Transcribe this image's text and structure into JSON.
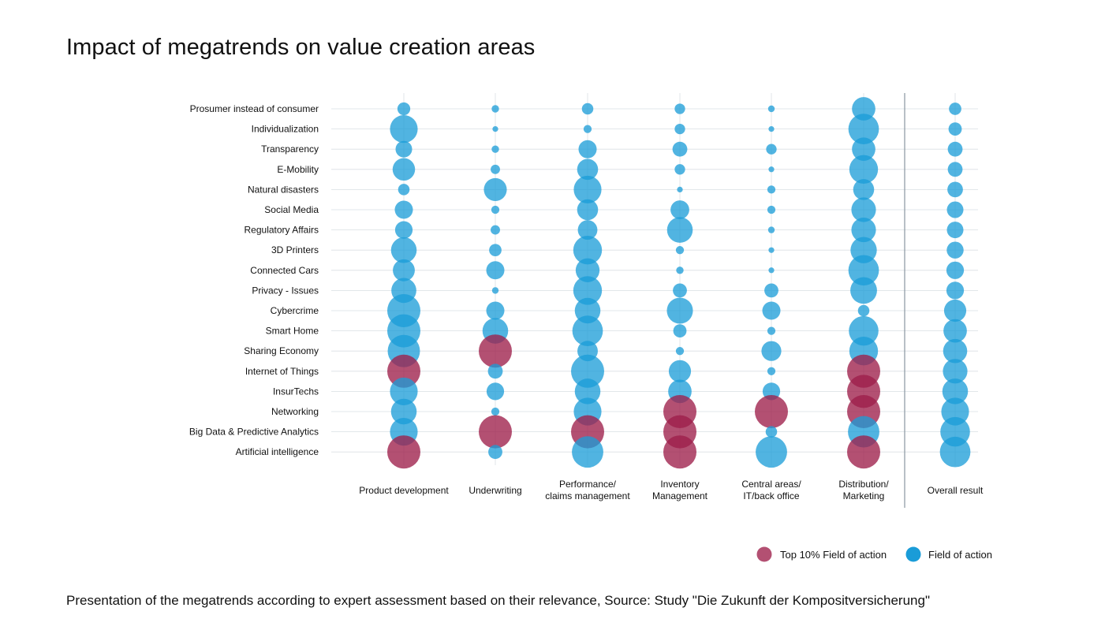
{
  "title": "Impact of megatrends on value creation areas",
  "caption": "Presentation of the megatrends according to expert assessment based on their relevance, Source: Study \"Die Zukunft der Kompositversicherung\"",
  "colors": {
    "field": "#1a9cd8",
    "top10": "#9e1f4a",
    "grid": "#d9dfe4",
    "divider": "#8a96a0"
  },
  "chart_data": {
    "type": "bubble-matrix",
    "rows": [
      "Prosumer instead of consumer",
      "Individualization",
      "Transparency",
      "E-Mobility",
      "Natural disasters",
      "Social Media",
      "Regulatory Affairs",
      "3D Printers",
      "Connected Cars",
      "Privacy - Issues",
      "Cybercrime",
      "Smart Home",
      "Sharing Economy",
      "Internet of Things",
      "InsurTechs",
      "Networking",
      "Big Data & Predictive Analytics",
      "Artificial intelligence"
    ],
    "columns": [
      {
        "label": [
          "Product development"
        ]
      },
      {
        "label": [
          "Underwriting"
        ]
      },
      {
        "label": [
          "Performance/",
          "claims management"
        ]
      },
      {
        "label": [
          "Inventory",
          "Management"
        ]
      },
      {
        "label": [
          "Central areas/",
          "IT/back office"
        ]
      },
      {
        "label": [
          "Distribution/",
          "Marketing"
        ]
      },
      {
        "label": [
          "Overall result"
        ]
      }
    ],
    "relevance_scale": "relative bubble size 0-10",
    "values": [
      [
        1.5,
        0.5,
        1.2,
        1.0,
        0.4,
        5.0,
        1.4
      ],
      [
        7.0,
        0.3,
        0.6,
        1.0,
        0.3,
        8.5,
        1.6
      ],
      [
        2.5,
        0.5,
        3.0,
        2.0,
        1.0,
        5.0,
        2.0
      ],
      [
        4.6,
        0.8,
        4.0,
        1.0,
        0.3,
        7.5,
        2.0
      ],
      [
        1.2,
        4.8,
        7.0,
        0.3,
        0.6,
        4.0,
        2.2
      ],
      [
        3.0,
        0.6,
        4.0,
        3.2,
        0.6,
        5.5,
        2.5
      ],
      [
        2.8,
        0.8,
        3.5,
        6.0,
        0.4,
        5.5,
        2.5
      ],
      [
        6.0,
        1.4,
        7.5,
        0.6,
        0.3,
        6.3,
        2.6
      ],
      [
        4.4,
        3.0,
        5.2,
        0.5,
        0.3,
        8.5,
        2.8
      ],
      [
        5.7,
        0.4,
        7.5,
        1.8,
        1.8,
        6.5,
        2.8
      ],
      [
        10.0,
        3.0,
        6.0,
        6.2,
        3.0,
        1.2,
        4.5
      ],
      [
        10.0,
        6.0,
        8.5,
        1.6,
        0.6,
        8.0,
        5.0
      ],
      [
        9.5,
        10.0,
        3.8,
        0.6,
        3.6,
        7.5,
        5.3
      ],
      [
        10.0,
        2.0,
        10.0,
        4.5,
        0.6,
        10.0,
        5.5
      ],
      [
        7.0,
        2.8,
        6.0,
        5.0,
        2.8,
        10.0,
        6.0
      ],
      [
        6.0,
        0.6,
        7.0,
        10.0,
        10.0,
        10.0,
        7.0
      ],
      [
        7.0,
        10.0,
        10.0,
        10.0,
        1.2,
        9.0,
        8.0
      ],
      [
        10.0,
        1.8,
        9.0,
        10.0,
        9.0,
        10.0,
        8.5
      ]
    ],
    "top10": [
      [
        0,
        0,
        0,
        0,
        0,
        0,
        0
      ],
      [
        0,
        0,
        0,
        0,
        0,
        0,
        0
      ],
      [
        0,
        0,
        0,
        0,
        0,
        0,
        0
      ],
      [
        0,
        0,
        0,
        0,
        0,
        0,
        0
      ],
      [
        0,
        0,
        0,
        0,
        0,
        0,
        0
      ],
      [
        0,
        0,
        0,
        0,
        0,
        0,
        0
      ],
      [
        0,
        0,
        0,
        0,
        0,
        0,
        0
      ],
      [
        0,
        0,
        0,
        0,
        0,
        0,
        0
      ],
      [
        0,
        0,
        0,
        0,
        0,
        0,
        0
      ],
      [
        0,
        0,
        0,
        0,
        0,
        0,
        0
      ],
      [
        0,
        0,
        0,
        0,
        0,
        0,
        0
      ],
      [
        0,
        0,
        0,
        0,
        0,
        0,
        0
      ],
      [
        0,
        1,
        0,
        0,
        0,
        0,
        0
      ],
      [
        1,
        0,
        0,
        0,
        0,
        1,
        0
      ],
      [
        0,
        0,
        0,
        0,
        0,
        1,
        0
      ],
      [
        0,
        0,
        0,
        1,
        1,
        1,
        0
      ],
      [
        0,
        1,
        1,
        1,
        0,
        0,
        0
      ],
      [
        1,
        0,
        0,
        1,
        0,
        1,
        0
      ]
    ],
    "legend": [
      {
        "label": "Top 10% Field of action",
        "key": "top10"
      },
      {
        "label": "Field of action",
        "key": "field"
      }
    ]
  }
}
